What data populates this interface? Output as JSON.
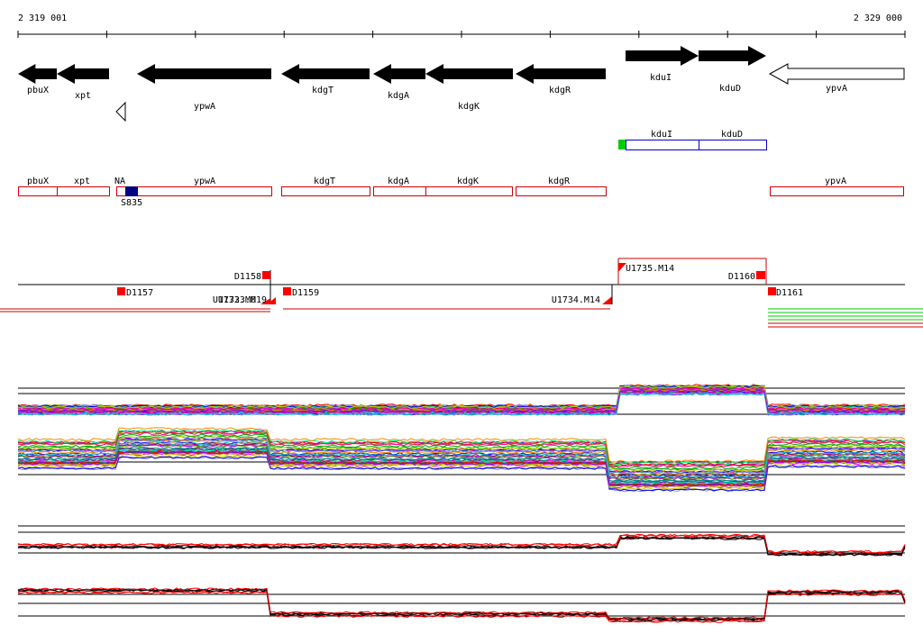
{
  "coordinates": {
    "start": "2 319 001",
    "end": "2 329 000"
  },
  "colors": {
    "gene_filled": "#000000",
    "gene_outline": "#000000",
    "operon_box": "#cc0000",
    "kdu_box": "#0000cc",
    "promoter_green": "#00cc00",
    "marker_red": "#ff0000",
    "sample_blue": "#000080",
    "track_red": "#ff0000",
    "track_green": "#00cc00",
    "track_black": "#000000"
  },
  "genes": [
    {
      "name": "pbuX",
      "strand": "minus",
      "filled": true
    },
    {
      "name": "xpt",
      "strand": "minus",
      "filled": true
    },
    {
      "name": "",
      "strand": "minus",
      "filled": false
    },
    {
      "name": "ypwA",
      "strand": "minus",
      "filled": true
    },
    {
      "name": "kdgT",
      "strand": "minus",
      "filled": true
    },
    {
      "name": "kdgA",
      "strand": "minus",
      "filled": true
    },
    {
      "name": "kdgK",
      "strand": "minus",
      "filled": true
    },
    {
      "name": "kdgR",
      "strand": "minus",
      "filled": true
    },
    {
      "name": "kduI",
      "strand": "plus",
      "filled": true
    },
    {
      "name": "kduD",
      "strand": "plus",
      "filled": true
    },
    {
      "name": "ypvA",
      "strand": "minus",
      "filled": false
    }
  ],
  "kdu_operon": [
    {
      "name": "kduI"
    },
    {
      "name": "kduD"
    }
  ],
  "operon_boxes": [
    {
      "name": "pbuX"
    },
    {
      "name": "xpt"
    },
    {
      "name": "NA"
    },
    {
      "name": "ypwA"
    },
    {
      "name": "kdgT"
    },
    {
      "name": "kdgA"
    },
    {
      "name": "kdgK"
    },
    {
      "name": "kdgR"
    },
    {
      "name": "ypvA"
    }
  ],
  "sample_label": "S835",
  "markers": [
    {
      "name": "D1157"
    },
    {
      "name": "D1158"
    },
    {
      "name": "D1159"
    },
    {
      "name": "U1734.M14"
    },
    {
      "name": "U1735.M14"
    },
    {
      "name": "D1160"
    },
    {
      "name": "D1161"
    },
    {
      "name": "U1733.M19"
    },
    {
      "name": "U1732.M0"
    }
  ]
}
